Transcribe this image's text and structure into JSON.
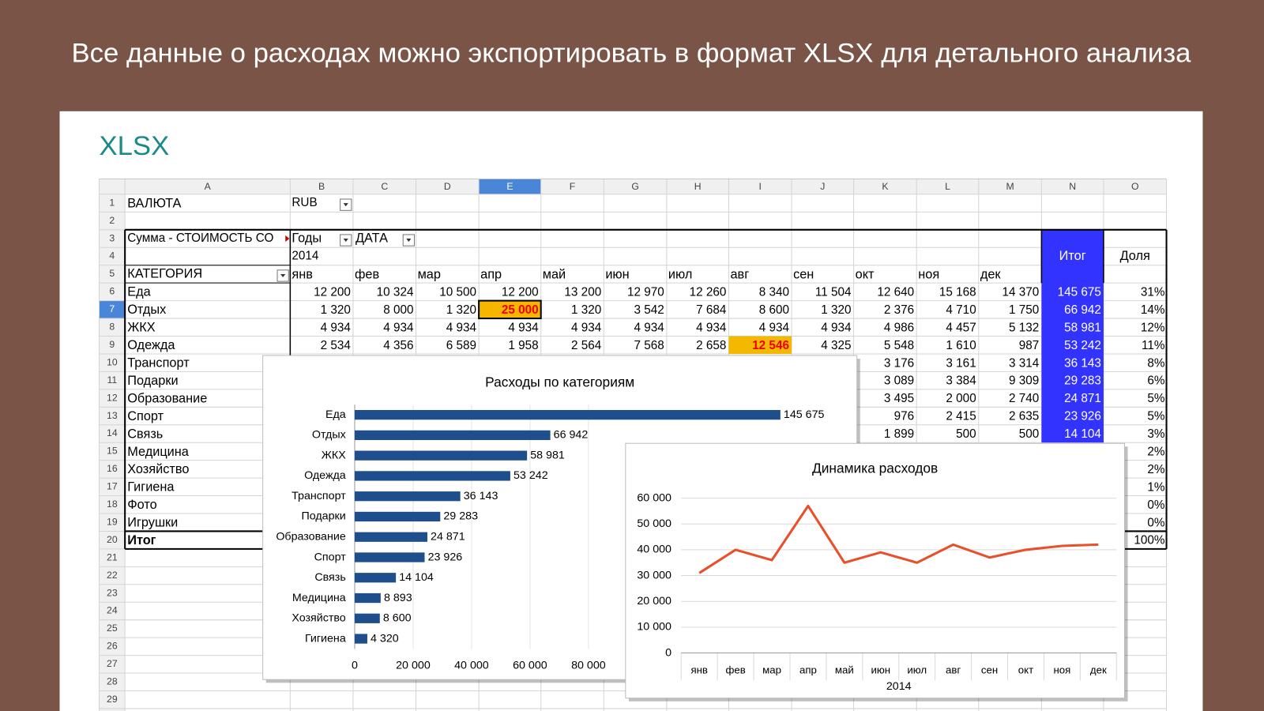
{
  "slide_title": "Все данные о расходах можно экспортировать в формат XLSX для детального анализа",
  "card_label": "XLSX",
  "sheet": {
    "columns": [
      "A",
      "B",
      "C",
      "D",
      "E",
      "F",
      "G",
      "H",
      "I",
      "J",
      "K",
      "L",
      "M",
      "N",
      "O"
    ],
    "row_numbers": [
      1,
      2,
      3,
      4,
      5,
      6,
      7,
      8,
      9,
      10,
      11,
      12,
      13,
      14,
      15,
      16,
      17,
      18,
      19,
      20,
      21,
      22,
      23,
      24,
      25,
      26,
      27,
      28,
      29
    ],
    "currency_label": "ВАЛЮТА",
    "currency": "RUB",
    "pivot_value_label": "Сумма - СТОИМОСТЬ СО",
    "years_field": "Годы",
    "date_field": "ДАТА",
    "year": "2014",
    "category_header": "КАТЕГОРИЯ",
    "months": [
      "янв",
      "фев",
      "мар",
      "апр",
      "май",
      "июн",
      "июл",
      "авг",
      "сен",
      "окт",
      "ноя",
      "дек"
    ],
    "total_header": "Итог",
    "share_header": "Доля",
    "rows": [
      {
        "category": "Еда",
        "cells": [
          "12 200",
          "10 324",
          "10 500",
          "12 200",
          "13 200",
          "12 970",
          "12 260",
          "8 340",
          "11 504",
          "12 640",
          "15 168",
          "14 370"
        ],
        "total": "145 675",
        "share": "31%"
      },
      {
        "category": "Отдых",
        "cells": [
          "1 320",
          "8 000",
          "1 320",
          "25 000",
          "1 320",
          "3 542",
          "7 684",
          "8 600",
          "1 320",
          "2 376",
          "4 710",
          "1 750"
        ],
        "total": "66 942",
        "share": "14%"
      },
      {
        "category": "ЖКХ",
        "cells": [
          "4 934",
          "4 934",
          "4 934",
          "4 934",
          "4 934",
          "4 934",
          "4 934",
          "4 934",
          "4 934",
          "4 986",
          "4 457",
          "5 132"
        ],
        "total": "58 981",
        "share": "12%"
      },
      {
        "category": "Одежда",
        "cells": [
          "2 534",
          "4 356",
          "6 589",
          "1 958",
          "2 564",
          "7 568",
          "2 658",
          "12 546",
          "4 325",
          "5 548",
          "1 610",
          "987"
        ],
        "total": "53 242",
        "share": "11%"
      },
      {
        "category": "Транспорт",
        "cells": [
          null,
          null,
          null,
          null,
          null,
          null,
          null,
          null,
          null,
          "3 176",
          "3 161",
          "3 314"
        ],
        "total": "36 143",
        "share": "8%"
      },
      {
        "category": "Подарки",
        "cells": [
          null,
          null,
          null,
          null,
          null,
          null,
          null,
          null,
          null,
          "3 089",
          "3 384",
          "9 309"
        ],
        "total": "29 283",
        "share": "6%"
      },
      {
        "category": "Образование",
        "cells": [
          null,
          null,
          null,
          null,
          null,
          null,
          null,
          null,
          null,
          "3 495",
          "2 000",
          "2 740"
        ],
        "total": "24 871",
        "share": "5%"
      },
      {
        "category": "Спорт",
        "cells": [
          null,
          null,
          null,
          null,
          null,
          null,
          null,
          null,
          null,
          "976",
          "2 415",
          "2 635"
        ],
        "total": "23 926",
        "share": "5%"
      },
      {
        "category": "Связь",
        "cells": [
          null,
          null,
          null,
          null,
          null,
          null,
          null,
          null,
          null,
          "1 899",
          "500",
          "500"
        ],
        "total": "14 104",
        "share": "3%"
      },
      {
        "category": "Медицина",
        "cells": [
          null,
          null,
          null,
          null,
          null,
          null,
          null,
          null,
          null,
          null,
          null,
          null
        ],
        "total": null,
        "share": "2%"
      },
      {
        "category": "Хозяйство",
        "cells": [
          null,
          null,
          null,
          null,
          null,
          null,
          null,
          null,
          null,
          null,
          null,
          null
        ],
        "total": null,
        "share": "2%"
      },
      {
        "category": "Гигиена",
        "cells": [
          null,
          null,
          null,
          null,
          null,
          null,
          null,
          null,
          null,
          null,
          null,
          null
        ],
        "total": null,
        "share": "1%"
      },
      {
        "category": "Фото",
        "cells": [
          null,
          null,
          null,
          null,
          null,
          null,
          null,
          null,
          null,
          null,
          null,
          null
        ],
        "total": null,
        "share": "0%"
      },
      {
        "category": "Игрушки",
        "cells": [
          null,
          null,
          null,
          null,
          null,
          null,
          null,
          null,
          null,
          null,
          null,
          null
        ],
        "total": null,
        "share": "0%"
      },
      {
        "category": "Итог",
        "cells": [
          null,
          null,
          null,
          null,
          null,
          null,
          null,
          null,
          null,
          null,
          null,
          null
        ],
        "total": null,
        "share": "100%"
      }
    ]
  },
  "bar_chart": {
    "type": "bar",
    "orientation": "horizontal",
    "title": "Расходы по категориям",
    "color": "#1f4e8c",
    "categories": [
      "Еда",
      "Отдых",
      "ЖКХ",
      "Одежда",
      "Транспорт",
      "Подарки",
      "Образование",
      "Спорт",
      "Связь",
      "Медицина",
      "Хозяйство",
      "Гигиена"
    ],
    "values": [
      145675,
      66942,
      58981,
      53242,
      36143,
      29283,
      24871,
      23926,
      14104,
      8893,
      8600,
      4320
    ],
    "value_labels": [
      "145 675",
      "66 942",
      "58 981",
      "53 242",
      "36 143",
      "29 283",
      "24 871",
      "23 926",
      "14 104",
      "8 893",
      "8 600",
      "4 320"
    ],
    "xlim": [
      0,
      160000
    ],
    "xticks": [
      0,
      {
        "value": 20000,
        "label": "20 000"
      },
      {
        "value": 40000,
        "label": "40 000"
      },
      {
        "value": 60000,
        "label": "60 000"
      },
      {
        "value": 80000,
        "label": "80 000"
      }
    ],
    "grid": true
  },
  "line_chart": {
    "type": "line",
    "title": "Динамика расходов",
    "x_label": "2014",
    "color": "#e8502a",
    "categories": [
      "янв",
      "фев",
      "мар",
      "апр",
      "май",
      "июн",
      "июл",
      "авг",
      "сен",
      "окт",
      "ноя",
      "дек"
    ],
    "values": [
      31000,
      40000,
      36000,
      57000,
      35000,
      39000,
      35000,
      42000,
      37000,
      40000,
      41500,
      42000
    ],
    "ylim": [
      0,
      60000
    ],
    "yticks": [
      0,
      {
        "value": 10000,
        "label": "10 000"
      },
      {
        "value": 20000,
        "label": "20 000"
      },
      {
        "value": 30000,
        "label": "30 000"
      },
      {
        "value": 40000,
        "label": "40 000"
      },
      {
        "value": 50000,
        "label": "50 000"
      },
      {
        "value": 60000,
        "label": "60 000"
      }
    ],
    "grid": true
  }
}
